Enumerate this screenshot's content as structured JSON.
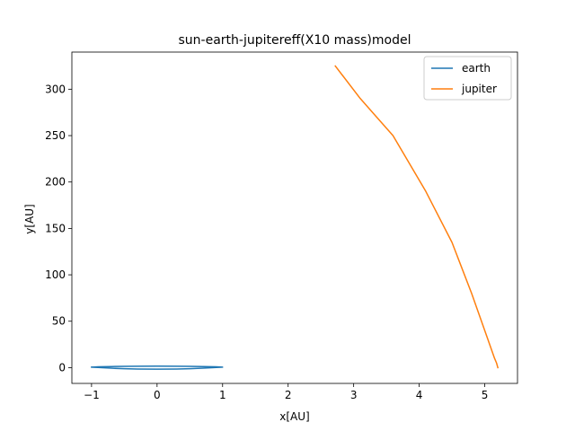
{
  "chart_data": {
    "type": "line",
    "title": "sun-earth-jupitereff(X10 mass)model",
    "xlabel": "x[AU]",
    "ylabel": "y[AU]",
    "xlim": [
      -1.3,
      5.5
    ],
    "ylim": [
      -17,
      340
    ],
    "xticks": [
      -1,
      0,
      1,
      2,
      3,
      4,
      5
    ],
    "yticks": [
      0,
      50,
      100,
      150,
      200,
      250,
      300
    ],
    "legend_position": "top-right",
    "grid": false,
    "series": [
      {
        "name": "earth",
        "color": "#1f77b4",
        "points": [
          [
            -1.0,
            0.5
          ],
          [
            -0.9,
            0.2
          ],
          [
            -0.7,
            -0.6
          ],
          [
            -0.5,
            -1.2
          ],
          [
            -0.3,
            -1.5
          ],
          [
            0.0,
            -1.6
          ],
          [
            0.3,
            -1.5
          ],
          [
            0.5,
            -1.2
          ],
          [
            0.7,
            -0.6
          ],
          [
            0.9,
            0.2
          ],
          [
            1.0,
            0.5
          ],
          [
            0.9,
            0.9
          ],
          [
            0.7,
            1.2
          ],
          [
            0.5,
            1.4
          ],
          [
            0.3,
            1.5
          ],
          [
            0.0,
            1.6
          ],
          [
            -0.3,
            1.5
          ],
          [
            -0.5,
            1.4
          ],
          [
            -0.7,
            1.2
          ],
          [
            -0.9,
            0.9
          ],
          [
            -1.0,
            0.5
          ]
        ]
      },
      {
        "name": "jupiter",
        "color": "#ff7f0e",
        "points": [
          [
            5.2,
            0
          ],
          [
            5.18,
            5
          ],
          [
            5.15,
            10
          ],
          [
            5.05,
            30
          ],
          [
            4.8,
            80
          ],
          [
            4.5,
            135
          ],
          [
            4.1,
            190
          ],
          [
            3.6,
            250
          ],
          [
            3.1,
            290
          ],
          [
            2.72,
            325
          ]
        ]
      }
    ]
  }
}
